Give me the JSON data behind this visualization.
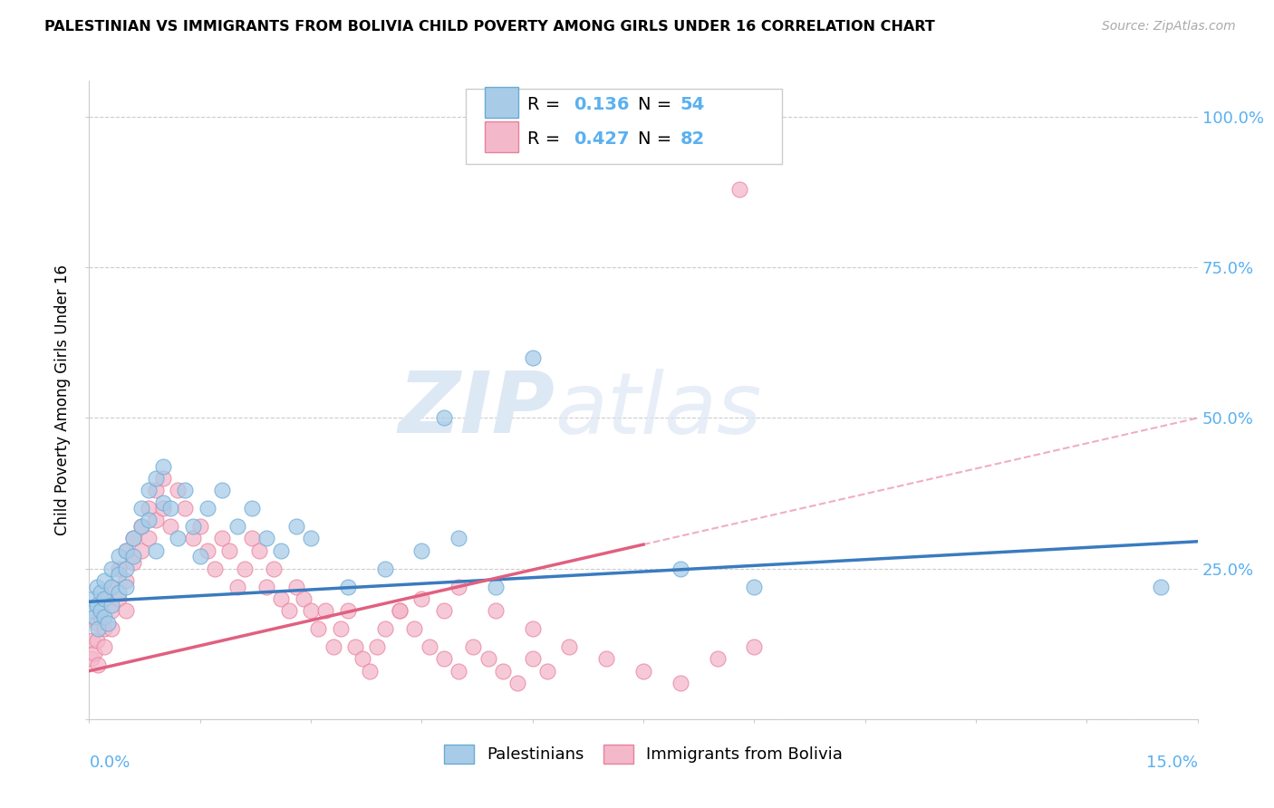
{
  "title": "PALESTINIAN VS IMMIGRANTS FROM BOLIVIA CHILD POVERTY AMONG GIRLS UNDER 16 CORRELATION CHART",
  "source": "Source: ZipAtlas.com",
  "ylabel": "Child Poverty Among Girls Under 16",
  "xmin": 0.0,
  "xmax": 0.15,
  "ymin": 0.0,
  "ymax": 1.06,
  "y_ticks": [
    0.0,
    0.25,
    0.5,
    0.75,
    1.0
  ],
  "y_tick_labels_right": [
    "",
    "25.0%",
    "50.0%",
    "75.0%",
    "100.0%"
  ],
  "R_pal": "0.136",
  "N_pal": "54",
  "R_bol": "0.427",
  "N_bol": "82",
  "color_blue_fill": "#a8cce8",
  "color_blue_edge": "#6aaad4",
  "color_pink_fill": "#f4b8cb",
  "color_pink_edge": "#e8809a",
  "color_blue_line": "#3a7bbf",
  "color_pink_line": "#e06080",
  "color_axis_label": "#5ab0f0",
  "color_grid": "#cccccc",
  "label_pal": "Palestinians",
  "label_bol": "Immigrants from Bolivia",
  "watermark_text": "ZIPatlas",
  "background_color": "#ffffff",
  "pal_x": [
    0.0003,
    0.0005,
    0.0007,
    0.001,
    0.001,
    0.0012,
    0.0015,
    0.0015,
    0.002,
    0.002,
    0.002,
    0.0025,
    0.003,
    0.003,
    0.003,
    0.004,
    0.004,
    0.004,
    0.005,
    0.005,
    0.005,
    0.006,
    0.006,
    0.007,
    0.007,
    0.008,
    0.008,
    0.009,
    0.009,
    0.01,
    0.01,
    0.011,
    0.012,
    0.013,
    0.014,
    0.015,
    0.016,
    0.018,
    0.02,
    0.022,
    0.024,
    0.026,
    0.028,
    0.03,
    0.035,
    0.04,
    0.045,
    0.048,
    0.05,
    0.055,
    0.06,
    0.08,
    0.09,
    0.145
  ],
  "pal_y": [
    0.18,
    0.2,
    0.17,
    0.22,
    0.19,
    0.15,
    0.21,
    0.18,
    0.23,
    0.2,
    0.17,
    0.16,
    0.25,
    0.19,
    0.22,
    0.27,
    0.24,
    0.21,
    0.28,
    0.25,
    0.22,
    0.3,
    0.27,
    0.35,
    0.32,
    0.38,
    0.33,
    0.4,
    0.28,
    0.36,
    0.42,
    0.35,
    0.3,
    0.38,
    0.32,
    0.27,
    0.35,
    0.38,
    0.32,
    0.35,
    0.3,
    0.28,
    0.32,
    0.3,
    0.22,
    0.25,
    0.28,
    0.5,
    0.3,
    0.22,
    0.6,
    0.25,
    0.22,
    0.22
  ],
  "bol_x": [
    0.0003,
    0.0005,
    0.0007,
    0.001,
    0.001,
    0.0012,
    0.0015,
    0.002,
    0.002,
    0.002,
    0.003,
    0.003,
    0.003,
    0.004,
    0.004,
    0.005,
    0.005,
    0.005,
    0.006,
    0.006,
    0.007,
    0.007,
    0.008,
    0.008,
    0.009,
    0.009,
    0.01,
    0.01,
    0.011,
    0.012,
    0.013,
    0.014,
    0.015,
    0.016,
    0.017,
    0.018,
    0.019,
    0.02,
    0.021,
    0.022,
    0.023,
    0.024,
    0.025,
    0.026,
    0.027,
    0.028,
    0.029,
    0.03,
    0.031,
    0.032,
    0.033,
    0.034,
    0.035,
    0.036,
    0.037,
    0.038,
    0.039,
    0.04,
    0.042,
    0.045,
    0.048,
    0.05,
    0.055,
    0.06,
    0.065,
    0.07,
    0.075,
    0.08,
    0.085,
    0.09,
    0.042,
    0.044,
    0.046,
    0.048,
    0.05,
    0.052,
    0.054,
    0.056,
    0.058,
    0.06,
    0.062,
    0.088
  ],
  "bol_y": [
    0.1,
    0.13,
    0.11,
    0.16,
    0.13,
    0.09,
    0.17,
    0.2,
    0.15,
    0.12,
    0.22,
    0.18,
    0.15,
    0.25,
    0.2,
    0.28,
    0.23,
    0.18,
    0.3,
    0.26,
    0.32,
    0.28,
    0.35,
    0.3,
    0.38,
    0.33,
    0.4,
    0.35,
    0.32,
    0.38,
    0.35,
    0.3,
    0.32,
    0.28,
    0.25,
    0.3,
    0.28,
    0.22,
    0.25,
    0.3,
    0.28,
    0.22,
    0.25,
    0.2,
    0.18,
    0.22,
    0.2,
    0.18,
    0.15,
    0.18,
    0.12,
    0.15,
    0.18,
    0.12,
    0.1,
    0.08,
    0.12,
    0.15,
    0.18,
    0.2,
    0.18,
    0.22,
    0.18,
    0.15,
    0.12,
    0.1,
    0.08,
    0.06,
    0.1,
    0.12,
    0.18,
    0.15,
    0.12,
    0.1,
    0.08,
    0.12,
    0.1,
    0.08,
    0.06,
    0.1,
    0.08,
    0.88
  ]
}
